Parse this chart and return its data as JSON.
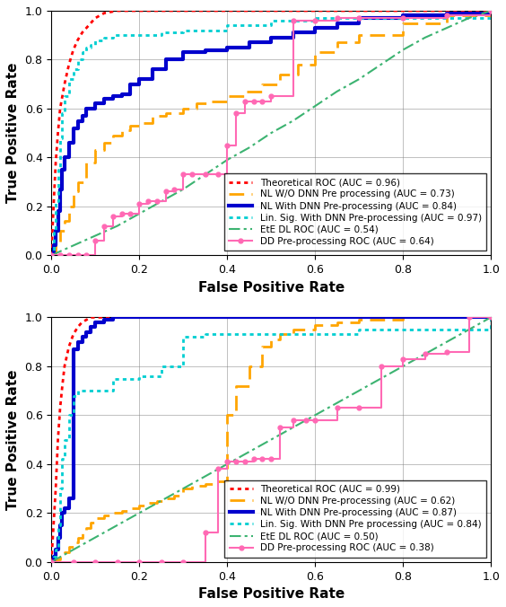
{
  "subplot1": {
    "xlabel": "False Positive Rate",
    "ylabel": "True Positive Rate",
    "legend_entries": [
      "Theoretical ROC (AUC = 0.96)",
      "NL W/O DNN Pre processing (AUC = 0.73)",
      "NL With DNN Pre-processing (AUC = 0.84)",
      "Lin. Sig. With DNN Pre-processing (AUC = 0.97)",
      "EtE DL ROC (AUC = 0.54)",
      "DD Pre-processing ROC (AUC = 0.64)"
    ],
    "curves": {
      "theoretical": {
        "color": "#ff0000",
        "linestyle": "dotted",
        "linewidth": 2.0,
        "marker": null,
        "drawstyle": "default",
        "x": [
          0.0,
          0.005,
          0.01,
          0.015,
          0.02,
          0.03,
          0.04,
          0.05,
          0.06,
          0.07,
          0.08,
          0.09,
          0.1,
          0.12,
          0.15,
          0.2,
          0.3,
          0.4,
          0.5,
          1.0
        ],
        "y": [
          0.0,
          0.2,
          0.38,
          0.5,
          0.6,
          0.7,
          0.78,
          0.84,
          0.88,
          0.91,
          0.93,
          0.95,
          0.97,
          0.99,
          1.0,
          1.0,
          1.0,
          1.0,
          1.0,
          1.0
        ]
      },
      "nl_without": {
        "color": "#ffa500",
        "linestyle": "dashed",
        "linewidth": 2.0,
        "marker": null,
        "drawstyle": "steps-post",
        "x": [
          0.0,
          0.01,
          0.02,
          0.03,
          0.04,
          0.05,
          0.06,
          0.08,
          0.1,
          0.12,
          0.14,
          0.16,
          0.18,
          0.2,
          0.23,
          0.26,
          0.3,
          0.33,
          0.36,
          0.4,
          0.44,
          0.48,
          0.52,
          0.56,
          0.6,
          0.65,
          0.7,
          0.8,
          0.9,
          1.0
        ],
        "y": [
          0.0,
          0.04,
          0.1,
          0.14,
          0.2,
          0.26,
          0.3,
          0.38,
          0.43,
          0.46,
          0.49,
          0.51,
          0.53,
          0.54,
          0.57,
          0.58,
          0.6,
          0.62,
          0.63,
          0.65,
          0.67,
          0.7,
          0.74,
          0.78,
          0.83,
          0.87,
          0.9,
          0.95,
          0.98,
          1.0
        ]
      },
      "nl_with": {
        "color": "#0000cd",
        "linestyle": "solid",
        "linewidth": 3.0,
        "marker": null,
        "drawstyle": "steps-post",
        "x": [
          0.0,
          0.005,
          0.01,
          0.015,
          0.02,
          0.025,
          0.03,
          0.04,
          0.05,
          0.06,
          0.07,
          0.08,
          0.1,
          0.12,
          0.14,
          0.16,
          0.18,
          0.2,
          0.23,
          0.26,
          0.3,
          0.35,
          0.4,
          0.45,
          0.5,
          0.55,
          0.6,
          0.65,
          0.7,
          0.8,
          0.9,
          1.0
        ],
        "y": [
          0.0,
          0.04,
          0.1,
          0.18,
          0.27,
          0.35,
          0.4,
          0.46,
          0.52,
          0.55,
          0.57,
          0.6,
          0.62,
          0.64,
          0.65,
          0.66,
          0.7,
          0.72,
          0.76,
          0.8,
          0.83,
          0.84,
          0.85,
          0.87,
          0.89,
          0.91,
          0.93,
          0.95,
          0.97,
          0.98,
          0.99,
          1.0
        ]
      },
      "lin_sig": {
        "color": "#00ced1",
        "linestyle": "dotted",
        "linewidth": 2.0,
        "marker": null,
        "drawstyle": "steps-post",
        "x": [
          0.0,
          0.005,
          0.01,
          0.015,
          0.02,
          0.025,
          0.03,
          0.04,
          0.05,
          0.06,
          0.07,
          0.08,
          0.09,
          0.1,
          0.12,
          0.14,
          0.16,
          0.18,
          0.2,
          0.25,
          0.3,
          0.4,
          0.5,
          0.6,
          1.0
        ],
        "y": [
          0.0,
          0.1,
          0.22,
          0.35,
          0.48,
          0.58,
          0.65,
          0.72,
          0.76,
          0.8,
          0.83,
          0.85,
          0.86,
          0.88,
          0.89,
          0.9,
          0.9,
          0.9,
          0.9,
          0.91,
          0.92,
          0.94,
          0.96,
          0.97,
          1.0
        ]
      },
      "ete_dl": {
        "color": "#3cb371",
        "linestyle": "dashdot",
        "linewidth": 1.5,
        "marker": null,
        "drawstyle": "default",
        "x": [
          0.0,
          0.05,
          0.1,
          0.15,
          0.2,
          0.25,
          0.3,
          0.35,
          0.4,
          0.45,
          0.5,
          0.55,
          0.6,
          0.65,
          0.7,
          0.75,
          0.8,
          0.85,
          0.9,
          0.95,
          1.0
        ],
        "y": [
          0.0,
          0.04,
          0.08,
          0.12,
          0.17,
          0.22,
          0.27,
          0.33,
          0.39,
          0.44,
          0.5,
          0.55,
          0.61,
          0.67,
          0.72,
          0.78,
          0.84,
          0.89,
          0.93,
          0.97,
          1.0
        ]
      },
      "dd_pre": {
        "color": "#ff69b4",
        "linestyle": "solid",
        "linewidth": 1.5,
        "marker": "o",
        "markersize": 3.5,
        "drawstyle": "steps-post",
        "x": [
          0.0,
          0.02,
          0.04,
          0.06,
          0.08,
          0.1,
          0.12,
          0.14,
          0.16,
          0.18,
          0.2,
          0.22,
          0.24,
          0.26,
          0.28,
          0.3,
          0.32,
          0.35,
          0.38,
          0.4,
          0.42,
          0.44,
          0.46,
          0.48,
          0.5,
          0.55,
          0.6,
          0.65,
          0.7,
          0.8,
          0.9,
          1.0
        ],
        "y": [
          0.0,
          0.0,
          0.0,
          0.0,
          0.0,
          0.06,
          0.12,
          0.16,
          0.17,
          0.17,
          0.21,
          0.22,
          0.22,
          0.26,
          0.27,
          0.33,
          0.33,
          0.33,
          0.33,
          0.45,
          0.58,
          0.63,
          0.63,
          0.63,
          0.65,
          0.96,
          0.96,
          0.97,
          0.97,
          0.97,
          0.98,
          1.0
        ]
      }
    }
  },
  "subplot2": {
    "xlabel": "False Positive Rate",
    "ylabel": "True Positive Rate",
    "legend_entries": [
      "Theoretical ROC (AUC = 0.99)",
      "NL W/O DNN Pre-processing (AUC = 0.62)",
      "NL With DNN Pre-processing (AUC = 0.87)",
      "Lin. Sig. With DNN Pre processing (AUC = 0.84)",
      "EtE DL ROC (AUC = 0.50)",
      "DD Pre-processing ROC (AUC = 0.38)"
    ],
    "curves": {
      "theoretical": {
        "color": "#ff0000",
        "linestyle": "dotted",
        "linewidth": 2.0,
        "marker": null,
        "drawstyle": "default",
        "x": [
          0.0,
          0.005,
          0.01,
          0.015,
          0.02,
          0.025,
          0.03,
          0.04,
          0.05,
          0.06,
          0.07,
          0.08,
          0.09,
          0.1,
          0.12,
          0.15,
          0.2,
          1.0
        ],
        "y": [
          0.0,
          0.15,
          0.3,
          0.5,
          0.63,
          0.72,
          0.8,
          0.88,
          0.93,
          0.96,
          0.98,
          0.99,
          1.0,
          1.0,
          1.0,
          1.0,
          1.0,
          1.0
        ]
      },
      "nl_without": {
        "color": "#ffa500",
        "linestyle": "dashed",
        "linewidth": 2.0,
        "marker": null,
        "drawstyle": "steps-post",
        "x": [
          0.0,
          0.01,
          0.02,
          0.03,
          0.04,
          0.05,
          0.06,
          0.07,
          0.08,
          0.09,
          0.1,
          0.12,
          0.14,
          0.16,
          0.18,
          0.2,
          0.22,
          0.24,
          0.26,
          0.28,
          0.3,
          0.32,
          0.35,
          0.38,
          0.4,
          0.42,
          0.45,
          0.48,
          0.5,
          0.52,
          0.55,
          0.6,
          0.65,
          0.7,
          0.8,
          0.9,
          1.0
        ],
        "y": [
          0.0,
          0.01,
          0.02,
          0.04,
          0.06,
          0.08,
          0.1,
          0.12,
          0.14,
          0.16,
          0.18,
          0.19,
          0.2,
          0.21,
          0.22,
          0.23,
          0.24,
          0.25,
          0.26,
          0.27,
          0.3,
          0.31,
          0.32,
          0.33,
          0.6,
          0.72,
          0.8,
          0.88,
          0.91,
          0.93,
          0.95,
          0.97,
          0.98,
          0.99,
          1.0,
          1.0,
          1.0
        ]
      },
      "nl_with": {
        "color": "#0000cd",
        "linestyle": "solid",
        "linewidth": 3.0,
        "marker": null,
        "drawstyle": "steps-post",
        "x": [
          0.0,
          0.005,
          0.01,
          0.015,
          0.02,
          0.025,
          0.03,
          0.04,
          0.05,
          0.06,
          0.07,
          0.08,
          0.09,
          0.1,
          0.12,
          0.14,
          0.16,
          0.18,
          0.2,
          0.25,
          0.3,
          0.4,
          0.5,
          1.0
        ],
        "y": [
          0.0,
          0.02,
          0.05,
          0.1,
          0.15,
          0.2,
          0.22,
          0.26,
          0.87,
          0.9,
          0.92,
          0.94,
          0.96,
          0.98,
          0.99,
          1.0,
          1.0,
          1.0,
          1.0,
          1.0,
          1.0,
          1.0,
          1.0,
          1.0
        ]
      },
      "lin_sig": {
        "color": "#00ced1",
        "linestyle": "dotted",
        "linewidth": 2.0,
        "marker": null,
        "drawstyle": "steps-post",
        "x": [
          0.0,
          0.005,
          0.01,
          0.015,
          0.02,
          0.025,
          0.03,
          0.04,
          0.05,
          0.06,
          0.07,
          0.08,
          0.09,
          0.1,
          0.12,
          0.14,
          0.16,
          0.18,
          0.2,
          0.25,
          0.3,
          0.35,
          0.4,
          0.5,
          0.7,
          1.0
        ],
        "y": [
          0.0,
          0.02,
          0.05,
          0.15,
          0.3,
          0.42,
          0.5,
          0.6,
          0.68,
          0.7,
          0.7,
          0.7,
          0.7,
          0.7,
          0.7,
          0.75,
          0.75,
          0.75,
          0.76,
          0.8,
          0.92,
          0.93,
          0.93,
          0.93,
          0.95,
          1.0
        ]
      },
      "ete_dl": {
        "color": "#3cb371",
        "linestyle": "dashdot",
        "linewidth": 1.5,
        "marker": null,
        "drawstyle": "default",
        "x": [
          0.0,
          0.05,
          0.1,
          0.15,
          0.2,
          0.25,
          0.3,
          0.35,
          0.4,
          0.45,
          0.5,
          0.55,
          0.6,
          0.65,
          0.7,
          0.75,
          0.8,
          0.85,
          0.9,
          0.95,
          1.0
        ],
        "y": [
          0.0,
          0.05,
          0.1,
          0.15,
          0.2,
          0.25,
          0.3,
          0.35,
          0.4,
          0.45,
          0.5,
          0.55,
          0.6,
          0.65,
          0.7,
          0.75,
          0.8,
          0.85,
          0.9,
          0.95,
          1.0
        ]
      },
      "dd_pre": {
        "color": "#ff69b4",
        "linestyle": "solid",
        "linewidth": 1.5,
        "marker": "o",
        "markersize": 3.5,
        "drawstyle": "steps-post",
        "x": [
          0.0,
          0.05,
          0.1,
          0.15,
          0.2,
          0.25,
          0.3,
          0.35,
          0.38,
          0.4,
          0.42,
          0.44,
          0.46,
          0.48,
          0.5,
          0.52,
          0.55,
          0.58,
          0.6,
          0.65,
          0.7,
          0.75,
          0.8,
          0.85,
          0.9,
          0.95,
          1.0
        ],
        "y": [
          0.0,
          0.0,
          0.0,
          0.0,
          0.0,
          0.0,
          0.0,
          0.12,
          0.38,
          0.41,
          0.41,
          0.41,
          0.42,
          0.42,
          0.42,
          0.55,
          0.58,
          0.58,
          0.58,
          0.63,
          0.63,
          0.8,
          0.83,
          0.85,
          0.86,
          1.0,
          1.0
        ]
      }
    }
  },
  "figure": {
    "figsize": [
      5.64,
      6.76
    ],
    "dpi": 100,
    "background": "#ffffff"
  },
  "grid_lines": [
    0.2,
    0.4,
    0.6,
    0.8
  ]
}
